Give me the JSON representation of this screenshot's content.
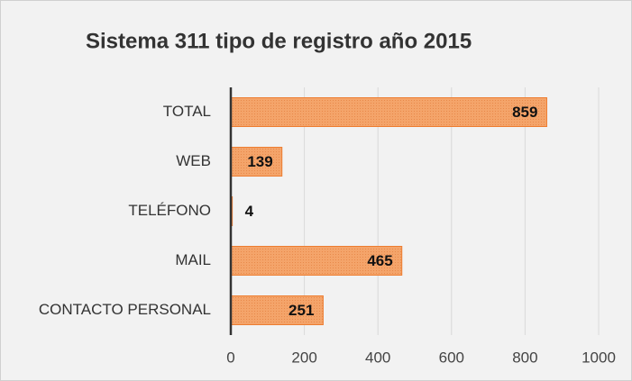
{
  "chart_data": {
    "type": "bar",
    "orientation": "horizontal",
    "title": "Sistema 311 tipo de registro año 2015",
    "categories": [
      "TOTAL",
      "WEB",
      "TELÉFONO",
      "MAIL",
      "CONTACTO PERSONAL"
    ],
    "values": [
      859,
      139,
      4,
      465,
      251
    ],
    "color": "#f4a46a",
    "edge_color": "#ed7d31",
    "xlim": [
      0,
      1000
    ],
    "xticks": [
      0,
      200,
      400,
      600,
      800,
      1000
    ],
    "grid": true
  }
}
